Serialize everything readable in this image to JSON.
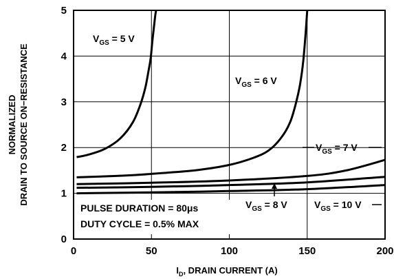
{
  "chart_data": {
    "type": "line",
    "title": "",
    "xlabel_main": "I",
    "xlabel_sub": "D",
    "xlabel_rest": ", DRAIN CURRENT (A)",
    "ylabel_line1": "NORMALIZED",
    "ylabel_line2": "DRAIN TO SOURCE ON−RESISTANCE",
    "xlim": [
      0,
      200
    ],
    "ylim": [
      0,
      5
    ],
    "xticks": [
      "0",
      "50",
      "100",
      "150",
      "200"
    ],
    "yticks": [
      "0",
      "1",
      "2",
      "3",
      "4",
      "5"
    ],
    "grid": true,
    "series": [
      {
        "name": "VGS = 5 V",
        "label_main": "V",
        "label_sub": "GS",
        "label_rest": " = 5 V",
        "x": [
          2,
          10,
          20,
          30,
          38,
          43,
          46,
          48,
          49.5,
          50.5,
          51.5,
          52.5,
          53
        ],
        "y": [
          1.79,
          1.85,
          1.97,
          2.2,
          2.55,
          2.95,
          3.3,
          3.65,
          3.95,
          4.3,
          4.6,
          4.9,
          5.0
        ]
      },
      {
        "name": "VGS = 6 V",
        "label_main": "V",
        "label_sub": "GS",
        "label_rest": " = 6 V",
        "x": [
          2,
          20,
          40,
          60,
          80,
          100,
          115,
          125,
          133,
          139,
          143,
          145.5,
          147.5,
          149,
          150
        ],
        "y": [
          1.35,
          1.37,
          1.4,
          1.45,
          1.51,
          1.62,
          1.77,
          1.93,
          2.2,
          2.55,
          3.0,
          3.4,
          3.9,
          4.5,
          5.0
        ]
      },
      {
        "name": "VGS = 7 V",
        "label_main": "V",
        "label_sub": "GS",
        "label_rest": " = 7 V",
        "x": [
          2,
          50,
          100,
          150,
          175,
          200
        ],
        "y": [
          1.2,
          1.23,
          1.28,
          1.38,
          1.5,
          1.73
        ]
      },
      {
        "name": "VGS = 8 V",
        "label_main": "V",
        "label_sub": "GS",
        "label_rest": " = 8 V",
        "x": [
          2,
          50,
          100,
          150,
          200
        ],
        "y": [
          1.12,
          1.14,
          1.18,
          1.24,
          1.36
        ]
      },
      {
        "name": "VGS = 10 V",
        "label_main": "V",
        "label_sub": "GS",
        "label_rest": " = 10 V",
        "x": [
          2,
          50,
          100,
          150,
          200
        ],
        "y": [
          1.0,
          1.02,
          1.05,
          1.09,
          1.18
        ]
      }
    ],
    "note_line1": "PULSE DURATION = 80μs",
    "note_line2": "DUTY CYCLE = 0.5% MAX"
  }
}
